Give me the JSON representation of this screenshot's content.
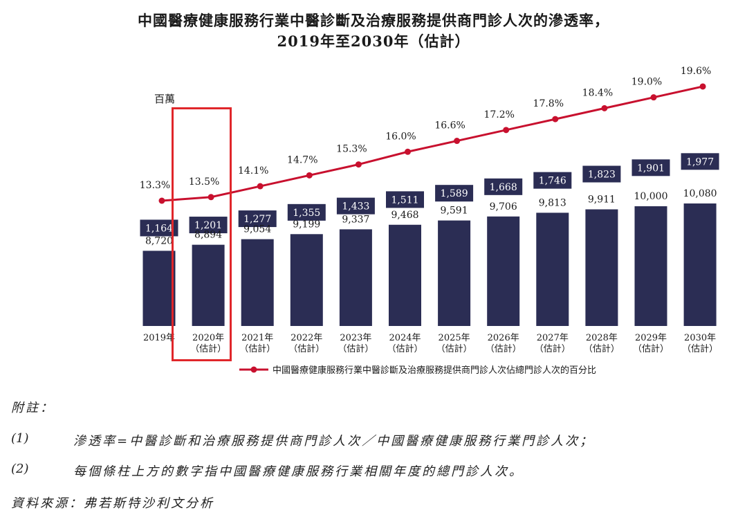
{
  "title": "中國醫療健康服務行業中醫診斷及治療服務提供商門診人次的滲透率，",
  "subtitle": "2019年至2030年（估計）",
  "chart_data": {
    "type": "bar+line",
    "unit_label": "百萬",
    "categories": [
      {
        "year": "2019年",
        "note": ""
      },
      {
        "year": "2020年",
        "note": "（估計）"
      },
      {
        "year": "2021年",
        "note": "（估計）"
      },
      {
        "year": "2022年",
        "note": "（估計）"
      },
      {
        "year": "2023年",
        "note": "（估計）"
      },
      {
        "year": "2024年",
        "note": "（估計）"
      },
      {
        "year": "2025年",
        "note": "（估計）"
      },
      {
        "year": "2026年",
        "note": "（估計）"
      },
      {
        "year": "2027年",
        "note": "（估計）"
      },
      {
        "year": "2028年",
        "note": "（估計）"
      },
      {
        "year": "2029年",
        "note": "（估計）"
      },
      {
        "year": "2030年",
        "note": "（估計）"
      }
    ],
    "total_visits": [
      8720,
      8894,
      9054,
      9199,
      9337,
      9468,
      9591,
      9706,
      9813,
      9911,
      10000,
      10080
    ],
    "total_visits_labels": [
      "8,720",
      "8,894",
      "9,054",
      "9,199",
      "9,337",
      "9,468",
      "9,591",
      "9,706",
      "9,813",
      "9,911",
      "10,000",
      "10,080"
    ],
    "tcm_visits": [
      1164,
      1201,
      1277,
      1355,
      1433,
      1511,
      1589,
      1668,
      1746,
      1823,
      1901,
      1977
    ],
    "tcm_visits_labels": [
      "1,164",
      "1,201",
      "1,277",
      "1,355",
      "1,433",
      "1,511",
      "1,589",
      "1,668",
      "1,746",
      "1,823",
      "1,901",
      "1,977"
    ],
    "penetration_rate": [
      13.3,
      13.5,
      14.1,
      14.7,
      15.3,
      16.0,
      16.6,
      17.2,
      17.8,
      18.4,
      19.0,
      19.6
    ],
    "penetration_labels": [
      "13.3%",
      "13.5%",
      "14.1%",
      "14.7%",
      "15.3%",
      "16.0%",
      "16.6%",
      "17.2%",
      "17.8%",
      "18.4%",
      "19.0%",
      "19.6%"
    ],
    "legend": "中國醫療健康服務行業中醫診斷及治療服務提供商門診人次佔總門診人次的百分比",
    "highlighted_category": "2020年",
    "colors": {
      "bar": "#2b2d54",
      "line": "#c8102e",
      "highlight": "#e0262a"
    }
  },
  "notes": {
    "heading": "附註：",
    "items": [
      {
        "num": "(1)",
        "text": "滲透率=中醫診斷和治療服務提供商門診人次／中國醫療健康服務行業門診人次；"
      },
      {
        "num": "(2)",
        "text": "每個條柱上方的數字指中國醫療健康服務行業相關年度的總門診人次。"
      }
    ],
    "source": "資料來源：弗若斯特沙利文分析"
  }
}
